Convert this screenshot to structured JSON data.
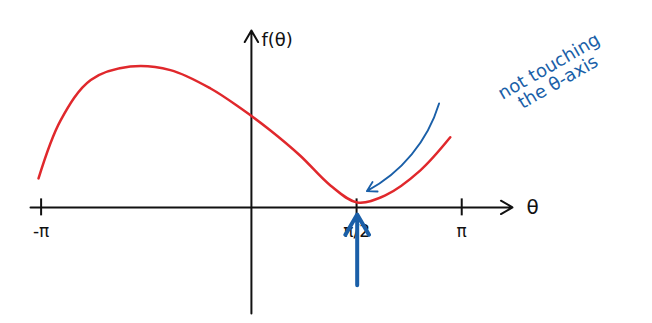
{
  "chart_data": {
    "type": "line",
    "x_label": "θ",
    "y_label": "f(θ)",
    "x": [
      -3.18,
      -2.85,
      -2.4,
      -1.81,
      -1.21,
      -0.61,
      -0.16,
      0.28,
      0.73,
      1.18,
      1.58,
      2.0,
      2.52,
      2.97
    ],
    "values": [
      0.41,
      1.23,
      1.8,
      1.99,
      1.94,
      1.68,
      1.4,
      1.09,
      0.73,
      0.31,
      0.07,
      0.17,
      0.52,
      0.99
    ],
    "color": "#e0282c",
    "xlim": [
      -3.3,
      3.9
    ],
    "ylim": [
      -1.5,
      2.5
    ],
    "xticks": [
      {
        "value": -3.1416,
        "label": "-π"
      },
      {
        "value": 1.5708,
        "label": "π/2"
      },
      {
        "value": 3.1416,
        "label": "π"
      }
    ],
    "yticks": [],
    "tick_labels": "x",
    "grid": false,
    "annotations": [
      {
        "text": "not touching the θ-axis"
      }
    ]
  }
}
